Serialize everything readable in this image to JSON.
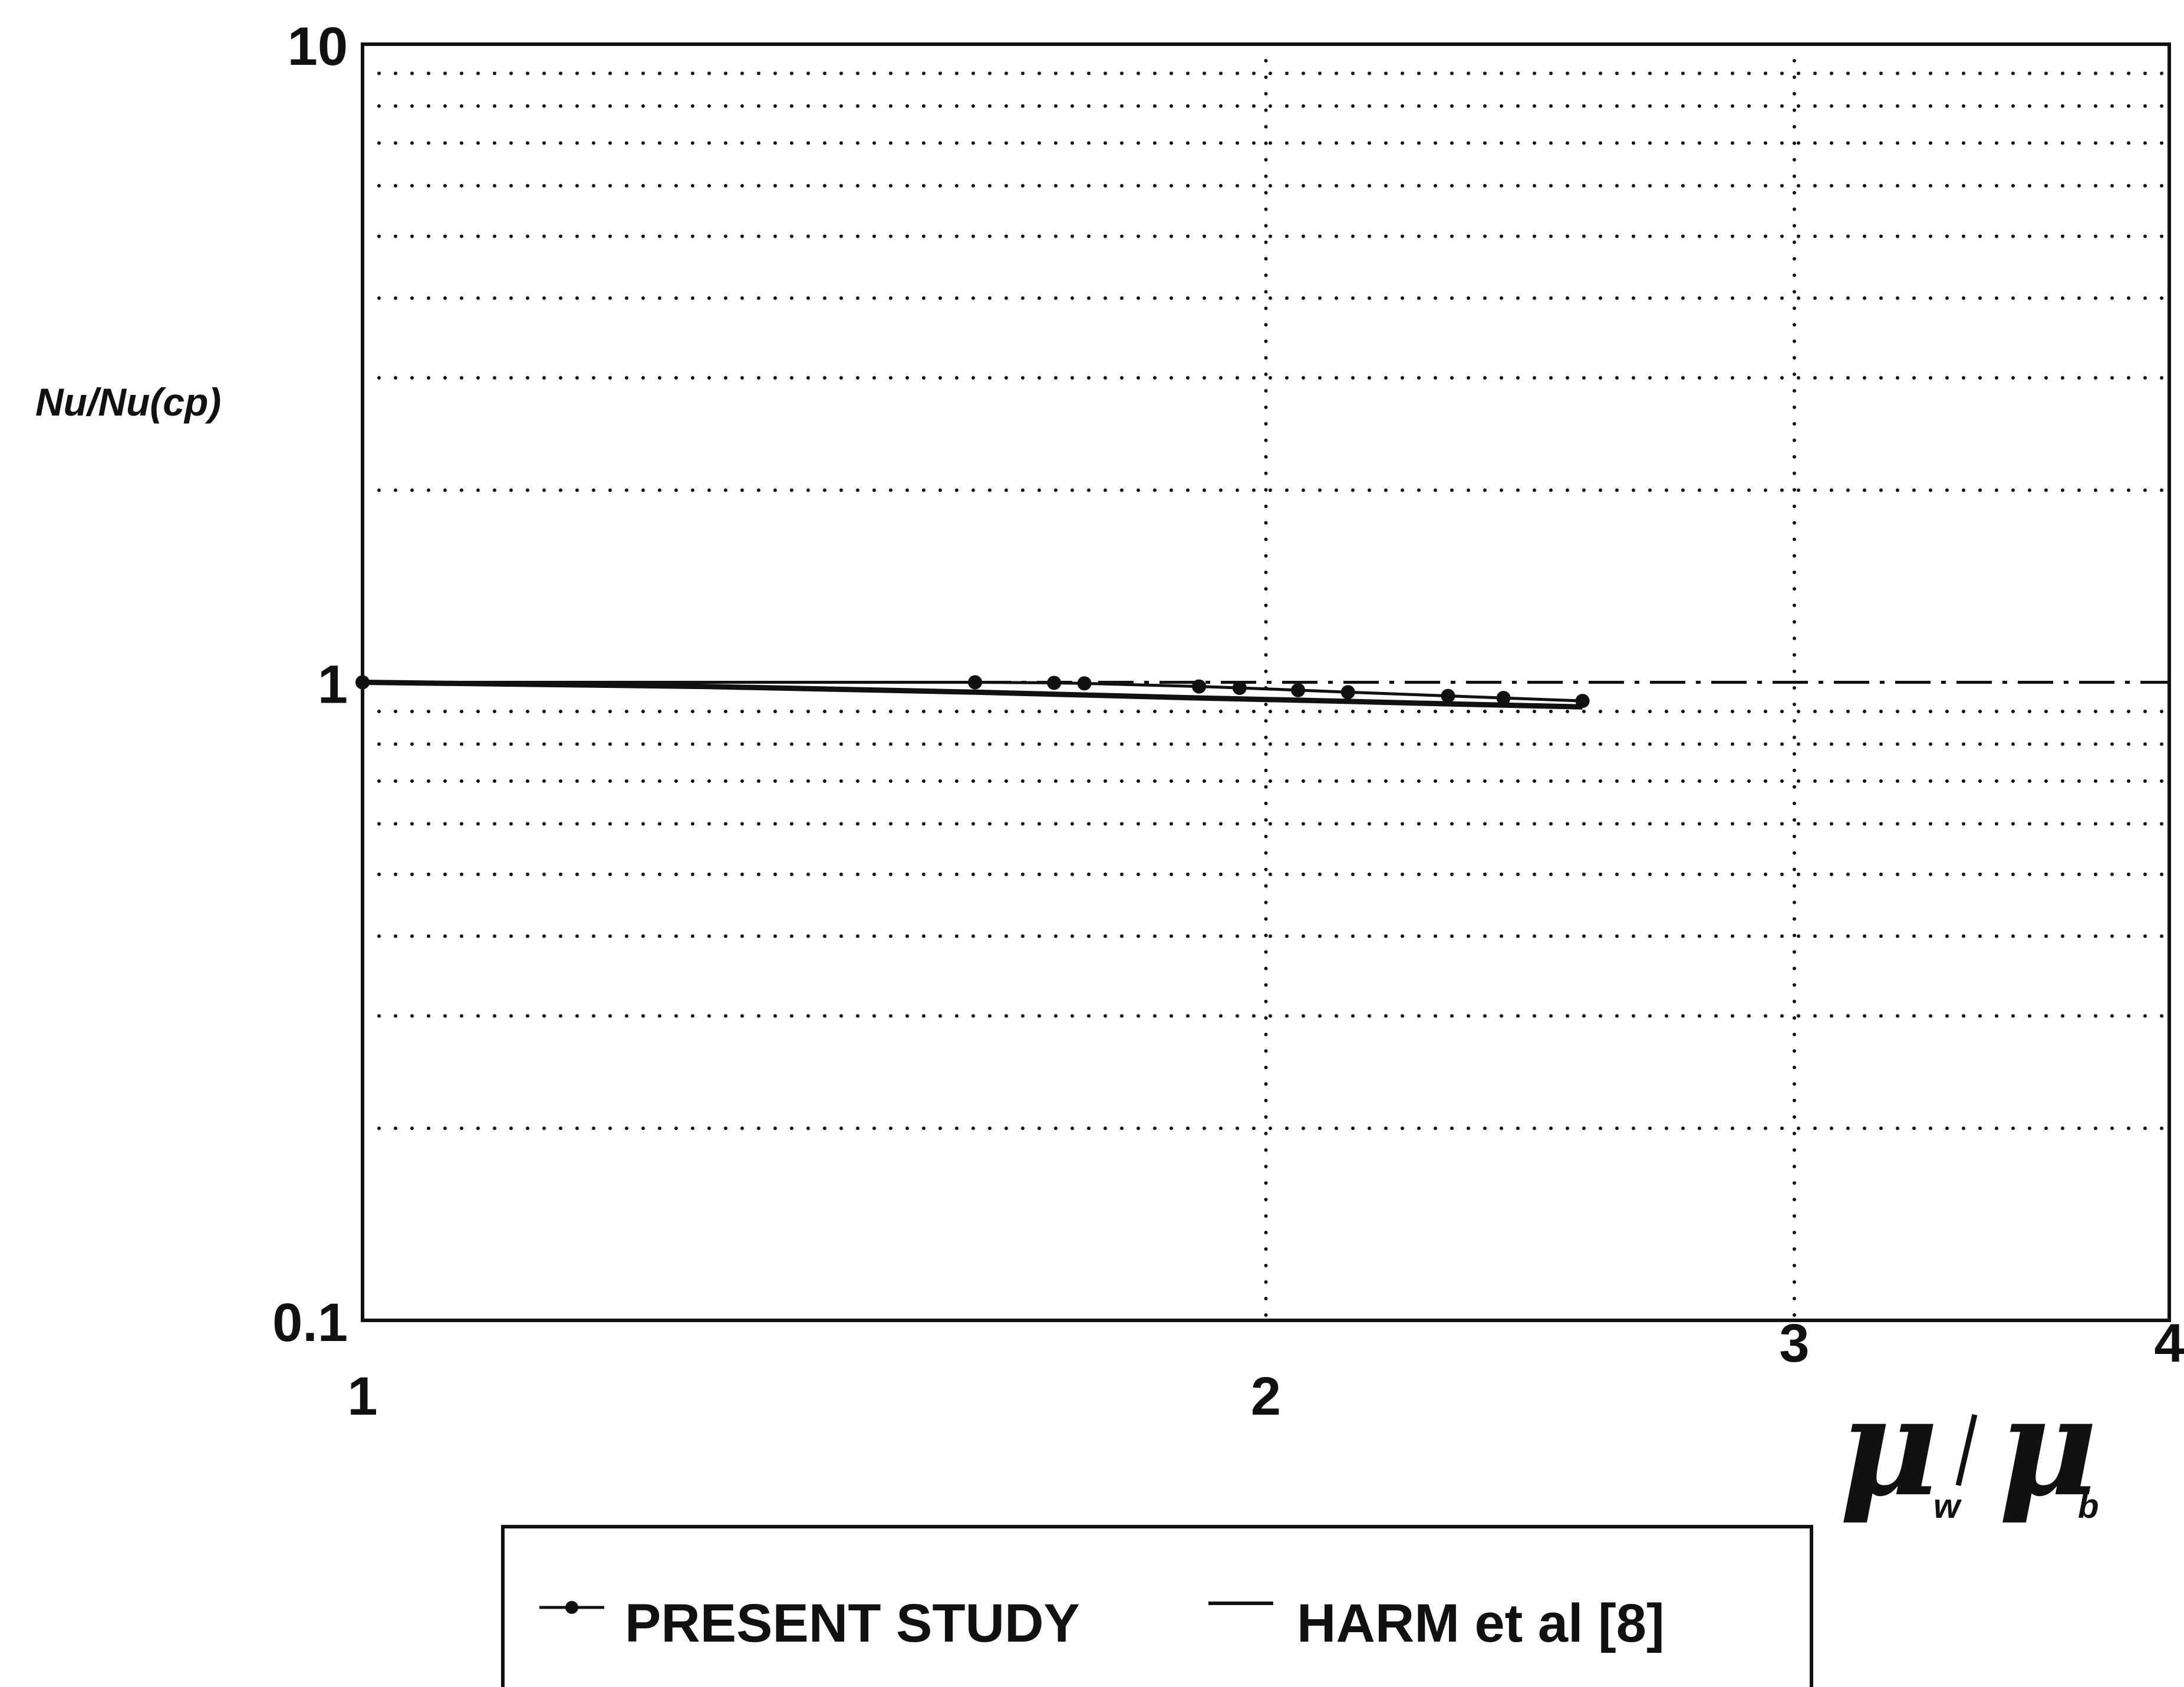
{
  "chart_data": {
    "type": "line",
    "x_scale": "log",
    "y_scale": "log",
    "xlim": [
      1,
      4
    ],
    "ylim": [
      0.1,
      10
    ],
    "x_ticks": [
      "1",
      "2",
      "3",
      "4"
    ],
    "y_ticks": [
      "0.1",
      "1",
      "10"
    ],
    "ylabel": "Nu/Nu(cp)",
    "xlabel": {
      "symbol": "μ",
      "sub1": "w",
      "sub2": "b"
    },
    "grid": "dotted",
    "legend_position": "bottom-center",
    "reference_line": {
      "y": 1.0,
      "style": "dash-dot"
    },
    "series": [
      {
        "name": "PRESENT STUDY",
        "marker": "dot",
        "style": "thin-with-markers",
        "x": [
          1.0,
          1.6,
          1.7,
          1.74,
          1.9,
          1.96,
          2.05,
          2.13,
          2.3,
          2.4,
          2.55
        ],
        "y": [
          1.0,
          1.0,
          0.998,
          0.996,
          0.985,
          0.98,
          0.972,
          0.965,
          0.952,
          0.945,
          0.935
        ]
      },
      {
        "name": "HARM et al [8]",
        "marker": "none",
        "style": "solid-thick",
        "x": [
          1.0,
          1.3,
          1.6,
          1.9,
          2.1,
          2.3,
          2.55
        ],
        "y": [
          1.0,
          0.985,
          0.965,
          0.945,
          0.935,
          0.925,
          0.915
        ]
      }
    ]
  }
}
